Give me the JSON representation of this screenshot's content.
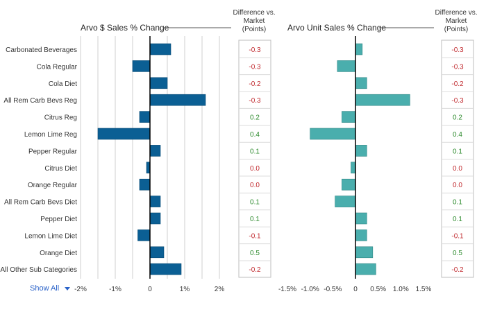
{
  "left_chart": {
    "title": "Arvo $ Sales % Change"
  },
  "right_chart": {
    "title": "Arvo Unit Sales % Change"
  },
  "diff_header_left": {
    "line1": "Difference vs.",
    "line2": "Market",
    "line3": "(Points)"
  },
  "diff_header_right": {
    "line1": "Difference vs.",
    "line2": "Market",
    "line3": "(Points)"
  },
  "show_all": {
    "label": "Show All"
  },
  "colors": {
    "left_bar": "#0b5f94",
    "right_bar": "#4aaead",
    "negative": "#c0282d",
    "positive": "#2e8b2e",
    "neutral": "#c0282d"
  },
  "chart_data": [
    {
      "type": "bar",
      "orientation": "horizontal",
      "title": "Arvo $ Sales % Change",
      "categories": [
        "Carbonated Beverages",
        "Cola Regular",
        "Cola Diet",
        "All Rem Carb Bevs Reg",
        "Citrus Reg",
        "Lemon Lime Reg",
        "Pepper Regular",
        "Citrus Diet",
        "Orange Regular",
        "All Rem Carb Bevs Diet",
        "Pepper Diet",
        "Lemon Lime Diet",
        "Orange Diet",
        "All Other Sub Categories"
      ],
      "values": [
        0.6,
        -0.5,
        0.5,
        1.6,
        -0.3,
        -1.5,
        0.3,
        -0.1,
        -0.3,
        0.3,
        0.3,
        -0.35,
        0.4,
        0.9
      ],
      "xlim": [
        -2,
        2
      ],
      "ticks": [
        -2,
        -1,
        0,
        1,
        2
      ],
      "tick_labels": [
        "-2%",
        "-1%",
        "0",
        "1%",
        "2%"
      ],
      "grid": true
    },
    {
      "type": "bar",
      "orientation": "horizontal",
      "title": "Arvo Unit Sales % Change",
      "categories": [
        "Carbonated Beverages",
        "Cola Regular",
        "Cola Diet",
        "All Rem Carb Bevs Reg",
        "Citrus Reg",
        "Lemon Lime Reg",
        "Pepper Regular",
        "Citrus Diet",
        "Orange Regular",
        "All Rem Carb Bevs Diet",
        "Pepper Diet",
        "Lemon Lime Diet",
        "Orange Diet",
        "All Other Sub Categories"
      ],
      "values": [
        0.15,
        -0.4,
        0.25,
        1.2,
        -0.3,
        -1.0,
        0.25,
        -0.1,
        -0.3,
        -0.45,
        0.25,
        0.25,
        0.38,
        0.45
      ],
      "xlim": [
        -1.5,
        1.5
      ],
      "ticks": [
        -1.5,
        -1.0,
        -0.5,
        0,
        0.5,
        1.0,
        1.5
      ],
      "tick_labels": [
        "-1.5%",
        "-1.0%",
        "-0.5%",
        "0",
        "0.5%",
        "1.0%",
        "1.5%"
      ],
      "grid": false
    }
  ],
  "diff_left": [
    "-0.3",
    "-0.3",
    "-0.2",
    "-0.3",
    "0.2",
    "0.4",
    "0.1",
    "0.0",
    "0.0",
    "0.1",
    "0.1",
    "-0.1",
    "0.5",
    "-0.2"
  ],
  "diff_right": [
    "-0.3",
    "-0.3",
    "-0.2",
    "-0.3",
    "0.2",
    "0.4",
    "0.1",
    "0.0",
    "0.0",
    "0.1",
    "0.1",
    "-0.1",
    "0.5",
    "-0.2"
  ]
}
